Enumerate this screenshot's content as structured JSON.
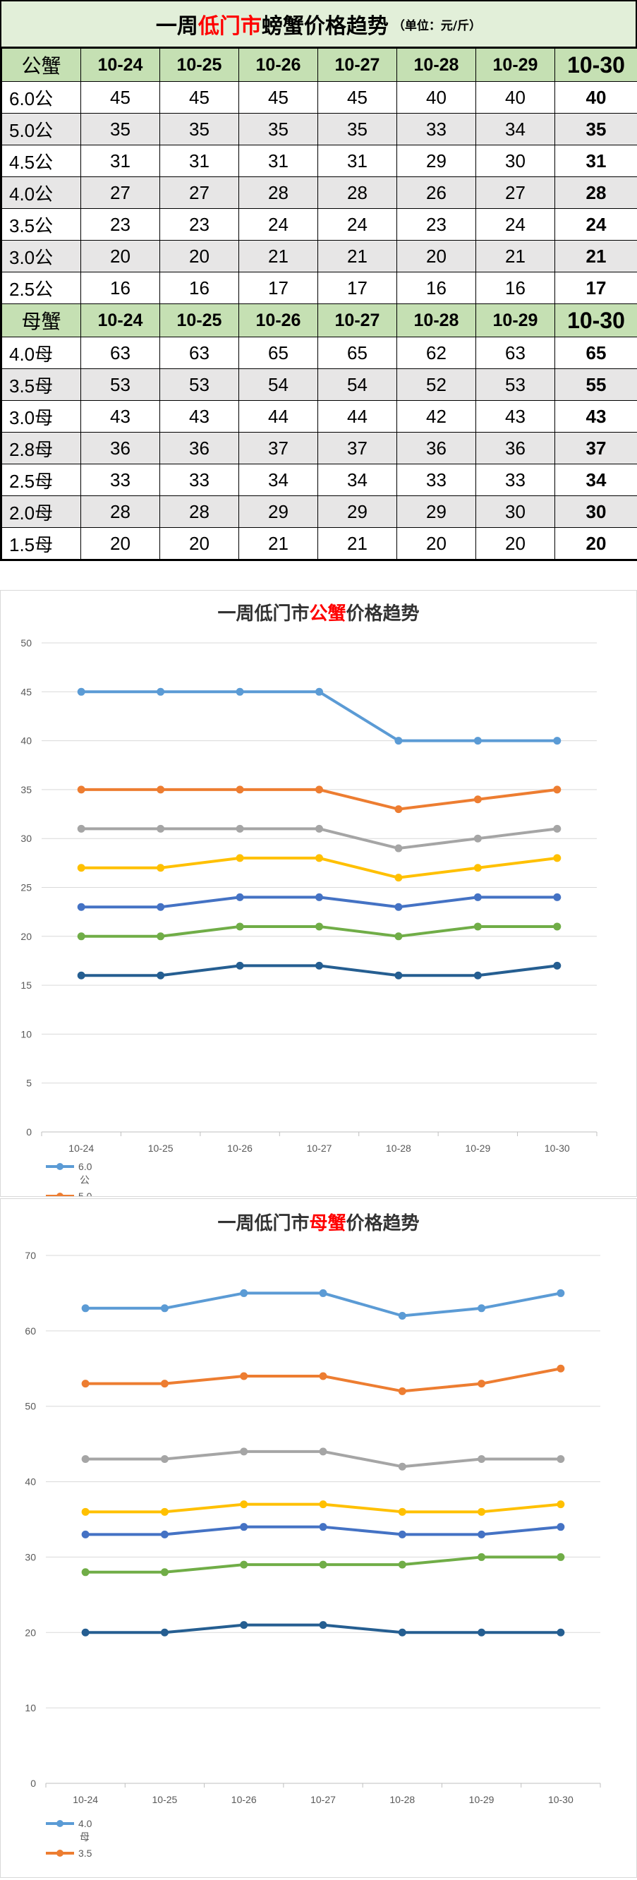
{
  "table": {
    "title_prefix": "一周",
    "title_highlight": "低门市",
    "title_suffix": "螃蟹价格趋势",
    "title_unit": "（单位：元/斤）",
    "dates": [
      "10-24",
      "10-25",
      "10-26",
      "10-27",
      "10-28",
      "10-29",
      "10-30"
    ],
    "male_header": "公蟹",
    "female_header": "母蟹",
    "male_rows": [
      {
        "label": "6.0公",
        "values": [
          "45",
          "45",
          "45",
          "45",
          "40",
          "40",
          "40"
        ]
      },
      {
        "label": "5.0公",
        "values": [
          "35",
          "35",
          "35",
          "35",
          "33",
          "34",
          "35"
        ]
      },
      {
        "label": "4.5公",
        "values": [
          "31",
          "31",
          "31",
          "31",
          "29",
          "30",
          "31"
        ]
      },
      {
        "label": "4.0公",
        "values": [
          "27",
          "27",
          "28",
          "28",
          "26",
          "27",
          "28"
        ]
      },
      {
        "label": "3.5公",
        "values": [
          "23",
          "23",
          "24",
          "24",
          "23",
          "24",
          "24"
        ]
      },
      {
        "label": "3.0公",
        "values": [
          "20",
          "20",
          "21",
          "21",
          "20",
          "21",
          "21"
        ]
      },
      {
        "label": "2.5公",
        "values": [
          "16",
          "16",
          "17",
          "17",
          "16",
          "16",
          "17"
        ]
      }
    ],
    "female_rows": [
      {
        "label": "4.0母",
        "values": [
          "63",
          "63",
          "65",
          "65",
          "62",
          "63",
          "65"
        ]
      },
      {
        "label": "3.5母",
        "values": [
          "53",
          "53",
          "54",
          "54",
          "52",
          "53",
          "55"
        ]
      },
      {
        "label": "3.0母",
        "values": [
          "43",
          "43",
          "44",
          "44",
          "42",
          "43",
          "43"
        ]
      },
      {
        "label": "2.8母",
        "values": [
          "36",
          "36",
          "37",
          "37",
          "36",
          "36",
          "37"
        ]
      },
      {
        "label": "2.5母",
        "values": [
          "33",
          "33",
          "34",
          "34",
          "33",
          "33",
          "34"
        ]
      },
      {
        "label": "2.0母",
        "values": [
          "28",
          "28",
          "29",
          "29",
          "29",
          "30",
          "30"
        ]
      },
      {
        "label": "1.5母",
        "values": [
          "20",
          "20",
          "21",
          "21",
          "20",
          "20",
          "20"
        ]
      }
    ]
  },
  "chart_data": [
    {
      "type": "line",
      "title_prefix": "一周低门市",
      "title_highlight": "公蟹",
      "title_suffix": "价格趋势",
      "categories": [
        "10-24",
        "10-25",
        "10-26",
        "10-27",
        "10-28",
        "10-29",
        "10-30"
      ],
      "ylim": [
        0,
        50
      ],
      "yticks": [
        0,
        5,
        10,
        15,
        20,
        25,
        30,
        35,
        40,
        45,
        50
      ],
      "grid": true,
      "legend_position": "bottom-left",
      "legend_visible": [
        {
          "text": "6.0",
          "text2": "公",
          "color": "#5b9bd5"
        },
        {
          "text": "5.0",
          "text2": "",
          "color": "#ed7d31"
        }
      ],
      "series": [
        {
          "name": "6.0公",
          "color": "#5b9bd5",
          "values": [
            45,
            45,
            45,
            45,
            40,
            40,
            40
          ]
        },
        {
          "name": "5.0公",
          "color": "#ed7d31",
          "values": [
            35,
            35,
            35,
            35,
            33,
            34,
            35
          ]
        },
        {
          "name": "4.5公",
          "color": "#a5a5a5",
          "values": [
            31,
            31,
            31,
            31,
            29,
            30,
            31
          ]
        },
        {
          "name": "4.0公",
          "color": "#ffc000",
          "values": [
            27,
            27,
            28,
            28,
            26,
            27,
            28
          ]
        },
        {
          "name": "3.5公",
          "color": "#4472c4",
          "values": [
            23,
            23,
            24,
            24,
            23,
            24,
            24
          ]
        },
        {
          "name": "3.0公",
          "color": "#70ad47",
          "values": [
            20,
            20,
            21,
            21,
            20,
            21,
            21
          ]
        },
        {
          "name": "2.5公",
          "color": "#255e91",
          "values": [
            16,
            16,
            17,
            17,
            16,
            16,
            17
          ]
        }
      ]
    },
    {
      "type": "line",
      "title_prefix": "一周低门市",
      "title_highlight": "母蟹",
      "title_suffix": "价格趋势",
      "categories": [
        "10-24",
        "10-25",
        "10-26",
        "10-27",
        "10-28",
        "10-29",
        "10-30"
      ],
      "ylim": [
        0,
        70
      ],
      "yticks": [
        0,
        10,
        20,
        30,
        40,
        50,
        60,
        70
      ],
      "grid": true,
      "legend_position": "bottom-left",
      "legend_visible": [
        {
          "text": "4.0",
          "text2": "母",
          "color": "#5b9bd5"
        },
        {
          "text": "3.5",
          "text2": "",
          "color": "#ed7d31"
        }
      ],
      "series": [
        {
          "name": "4.0母",
          "color": "#5b9bd5",
          "values": [
            63,
            63,
            65,
            65,
            62,
            63,
            65
          ]
        },
        {
          "name": "3.5母",
          "color": "#ed7d31",
          "values": [
            53,
            53,
            54,
            54,
            52,
            53,
            55
          ]
        },
        {
          "name": "3.0母",
          "color": "#a5a5a5",
          "values": [
            43,
            43,
            44,
            44,
            42,
            43,
            43
          ]
        },
        {
          "name": "2.8母",
          "color": "#ffc000",
          "values": [
            36,
            36,
            37,
            37,
            36,
            36,
            37
          ]
        },
        {
          "name": "2.5母",
          "color": "#4472c4",
          "values": [
            33,
            33,
            34,
            34,
            33,
            33,
            34
          ]
        },
        {
          "name": "2.0母",
          "color": "#70ad47",
          "values": [
            28,
            28,
            29,
            29,
            29,
            30,
            30
          ]
        },
        {
          "name": "1.5母",
          "color": "#255e91",
          "values": [
            20,
            20,
            21,
            21,
            20,
            20,
            20
          ]
        }
      ]
    }
  ]
}
